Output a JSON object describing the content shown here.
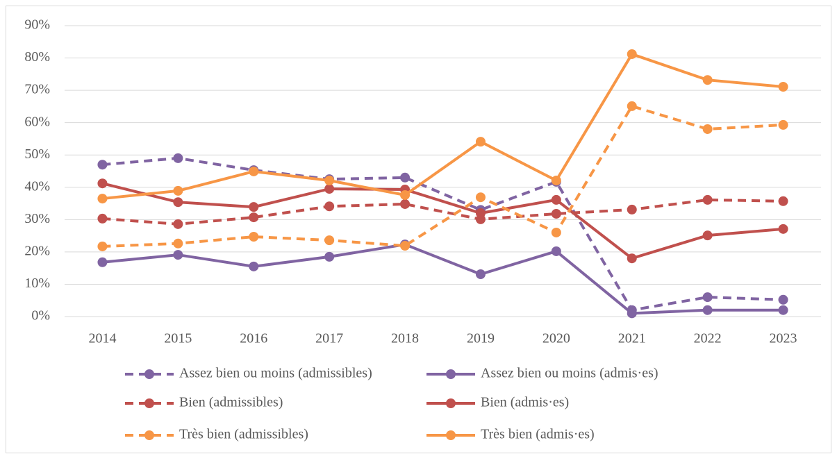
{
  "chart_data": {
    "type": "line",
    "categories": [
      "2014",
      "2015",
      "2016",
      "2017",
      "2018",
      "2019",
      "2020",
      "2021",
      "2022",
      "2023"
    ],
    "series": [
      {
        "name": "Assez bien ou moins (admissibles)",
        "color": "#8064a2",
        "line_style": "dashed",
        "values": [
          47.0,
          49.0,
          45.3,
          42.5,
          43.0,
          33.0,
          41.7,
          2.0,
          6.0,
          5.2
        ]
      },
      {
        "name": "Assez bien ou moins (admis·es)",
        "color": "#8064a2",
        "line_style": "solid",
        "values": [
          16.8,
          19.1,
          15.5,
          18.5,
          22.3,
          13.1,
          20.2,
          1.0,
          2.0,
          2.0
        ]
      },
      {
        "name": "Bien (admissibles)",
        "color": "#c0504d",
        "line_style": "dashed",
        "values": [
          30.3,
          28.6,
          30.7,
          34.1,
          34.8,
          30.1,
          31.8,
          33.1,
          36.1,
          35.7
        ]
      },
      {
        "name": "Bien (admis·es)",
        "color": "#c0504d",
        "line_style": "solid",
        "values": [
          41.2,
          35.4,
          33.9,
          39.5,
          39.3,
          32.0,
          36.1,
          18.0,
          25.1,
          27.1
        ]
      },
      {
        "name": "Très bien (admissibles)",
        "color": "#f79646",
        "line_style": "dashed",
        "values": [
          21.7,
          22.6,
          24.7,
          23.6,
          21.9,
          36.9,
          26.0,
          65.1,
          58.0,
          59.3
        ]
      },
      {
        "name": "Très bien (admis·es)",
        "color": "#f79646",
        "line_style": "solid",
        "values": [
          36.5,
          38.9,
          44.9,
          42.1,
          37.6,
          54.1,
          42.1,
          81.2,
          73.2,
          71.1
        ]
      }
    ],
    "ylim": [
      0,
      90
    ],
    "yticks": [
      {
        "value": 0,
        "label": "0%"
      },
      {
        "value": 10,
        "label": "10%"
      },
      {
        "value": 20,
        "label": "20%"
      },
      {
        "value": 30,
        "label": "30%"
      },
      {
        "value": 40,
        "label": "40%"
      },
      {
        "value": 50,
        "label": "50%"
      },
      {
        "value": 60,
        "label": "60%"
      },
      {
        "value": 70,
        "label": "70%"
      },
      {
        "value": 80,
        "label": "80%"
      },
      {
        "value": 90,
        "label": "90%"
      }
    ],
    "grid": true,
    "legend": "bottom"
  }
}
